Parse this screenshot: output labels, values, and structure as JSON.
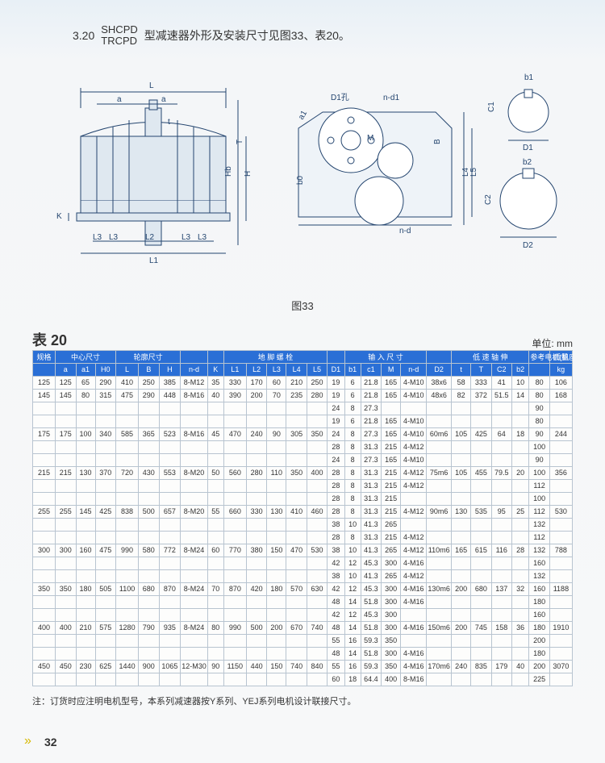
{
  "header": {
    "section_number": "3.20",
    "model_top": "SHCPD",
    "model_bottom": "TRCPD",
    "desc": "型减速器外形及安装尺寸见图33、表20。"
  },
  "figure_caption": "图33",
  "table_title": "表 20",
  "unit_label": "单位: mm",
  "diagram_labels": {
    "L": "L",
    "a": "a",
    "t": "t",
    "K": "K",
    "L3a": "L3",
    "L3b": "L3",
    "L2": "L2",
    "L3c": "L3",
    "L3d": "L3",
    "L1": "L1",
    "Hb": "Hb",
    "H": "H",
    "T": "T",
    "D1hole": "D1孔",
    "nd1": "n-d1",
    "a1": "a1",
    "M": "M",
    "B": "B",
    "L4": "L4",
    "L5": "L5",
    "b0": "b0",
    "nd": "n-d",
    "b1": "b1",
    "C1": "C1",
    "D1": "D1",
    "b2": "b2",
    "C2": "C2",
    "D2": "D2"
  },
  "columns": {
    "groups": [
      {
        "label": "规格",
        "span": 1
      },
      {
        "label": "中心尺寸",
        "span": 3
      },
      {
        "label": "轮廓尺寸",
        "span": 3
      },
      {
        "label": "",
        "span": 1
      },
      {
        "label": "",
        "span": 1
      },
      {
        "label": "地 脚 螺 栓",
        "span": 5
      },
      {
        "label": "",
        "span": 1
      },
      {
        "label": "输 入 尺 寸",
        "span": 4
      },
      {
        "label": "",
        "span": 1
      },
      {
        "label": "低 速 轴 伸",
        "span": 4
      },
      {
        "label": "参考电机(机座号)",
        "span": 1
      },
      {
        "label": "质量",
        "span": 1
      }
    ],
    "heads": [
      "",
      "a",
      "a1",
      "H0",
      "L",
      "B",
      "H",
      "n-d",
      "K",
      "L1",
      "L2",
      "L3",
      "L4",
      "L5",
      "D1",
      "b1",
      "c1",
      "M",
      "n-d",
      "D2",
      "t",
      "T",
      "C2",
      "b2",
      "",
      "kg"
    ]
  },
  "rows": [
    [
      "125",
      "125",
      "65",
      "290",
      "410",
      "250",
      "385",
      "8-M12",
      "35",
      "330",
      "170",
      "60",
      "210",
      "250",
      "19",
      "6",
      "21.8",
      "165",
      "4-M10",
      "38x6",
      "58",
      "333",
      "41",
      "10",
      "80",
      "106"
    ],
    [
      "145",
      "145",
      "80",
      "315",
      "475",
      "290",
      "448",
      "8-M16",
      "40",
      "390",
      "200",
      "70",
      "235",
      "280",
      "19",
      "6",
      "21.8",
      "165",
      "4-M10",
      "48x6",
      "82",
      "372",
      "51.5",
      "14",
      "80",
      "168"
    ],
    [
      "",
      "",
      "",
      "",
      "",
      "",
      "",
      "",
      "",
      "",
      "",
      "",
      "",
      "",
      "24",
      "8",
      "27.3",
      "",
      "",
      "",
      "",
      "",
      "",
      "",
      "90",
      ""
    ],
    [
      "",
      "",
      "",
      "",
      "",
      "",
      "",
      "",
      "",
      "",
      "",
      "",
      "",
      "",
      "19",
      "6",
      "21.8",
      "165",
      "4-M10",
      "",
      "",
      "",
      "",
      "",
      "80",
      ""
    ],
    [
      "175",
      "175",
      "100",
      "340",
      "585",
      "365",
      "523",
      "8-M16",
      "45",
      "470",
      "240",
      "90",
      "305",
      "350",
      "24",
      "8",
      "27.3",
      "165",
      "4-M10",
      "60m6",
      "105",
      "425",
      "64",
      "18",
      "90",
      "244"
    ],
    [
      "",
      "",
      "",
      "",
      "",
      "",
      "",
      "",
      "",
      "",
      "",
      "",
      "",
      "",
      "28",
      "8",
      "31.3",
      "215",
      "4-M12",
      "",
      "",
      "",
      "",
      "",
      "100",
      ""
    ],
    [
      "",
      "",
      "",
      "",
      "",
      "",
      "",
      "",
      "",
      "",
      "",
      "",
      "",
      "",
      "24",
      "8",
      "27.3",
      "165",
      "4-M10",
      "",
      "",
      "",
      "",
      "",
      "90",
      ""
    ],
    [
      "215",
      "215",
      "130",
      "370",
      "720",
      "430",
      "553",
      "8-M20",
      "50",
      "560",
      "280",
      "110",
      "350",
      "400",
      "28",
      "8",
      "31.3",
      "215",
      "4-M12",
      "75m6",
      "105",
      "455",
      "79.5",
      "20",
      "100",
      "356"
    ],
    [
      "",
      "",
      "",
      "",
      "",
      "",
      "",
      "",
      "",
      "",
      "",
      "",
      "",
      "",
      "28",
      "8",
      "31.3",
      "215",
      "4-M12",
      "",
      "",
      "",
      "",
      "",
      "112",
      ""
    ],
    [
      "",
      "",
      "",
      "",
      "",
      "",
      "",
      "",
      "",
      "",
      "",
      "",
      "",
      "",
      "28",
      "8",
      "31.3",
      "215",
      "",
      "",
      "",
      "",
      "",
      "",
      "100",
      ""
    ],
    [
      "255",
      "255",
      "145",
      "425",
      "838",
      "500",
      "657",
      "8-M20",
      "55",
      "660",
      "330",
      "130",
      "410",
      "460",
      "28",
      "8",
      "31.3",
      "215",
      "4-M12",
      "90m6",
      "130",
      "535",
      "95",
      "25",
      "112",
      "530"
    ],
    [
      "",
      "",
      "",
      "",
      "",
      "",
      "",
      "",
      "",
      "",
      "",
      "",
      "",
      "",
      "38",
      "10",
      "41.3",
      "265",
      "",
      "",
      "",
      "",
      "",
      "",
      "132",
      ""
    ],
    [
      "",
      "",
      "",
      "",
      "",
      "",
      "",
      "",
      "",
      "",
      "",
      "",
      "",
      "",
      "28",
      "8",
      "31.3",
      "215",
      "4-M12",
      "",
      "",
      "",
      "",
      "",
      "112",
      ""
    ],
    [
      "300",
      "300",
      "160",
      "475",
      "990",
      "580",
      "772",
      "8-M24",
      "60",
      "770",
      "380",
      "150",
      "470",
      "530",
      "38",
      "10",
      "41.3",
      "265",
      "4-M12",
      "110m6",
      "165",
      "615",
      "116",
      "28",
      "132",
      "788"
    ],
    [
      "",
      "",
      "",
      "",
      "",
      "",
      "",
      "",
      "",
      "",
      "",
      "",
      "",
      "",
      "42",
      "12",
      "45.3",
      "300",
      "4-M16",
      "",
      "",
      "",
      "",
      "",
      "160",
      ""
    ],
    [
      "",
      "",
      "",
      "",
      "",
      "",
      "",
      "",
      "",
      "",
      "",
      "",
      "",
      "",
      "38",
      "10",
      "41.3",
      "265",
      "4-M12",
      "",
      "",
      "",
      "",
      "",
      "132",
      ""
    ],
    [
      "350",
      "350",
      "180",
      "505",
      "1100",
      "680",
      "870",
      "8-M24",
      "70",
      "870",
      "420",
      "180",
      "570",
      "630",
      "42",
      "12",
      "45.3",
      "300",
      "4-M16",
      "130m6",
      "200",
      "680",
      "137",
      "32",
      "160",
      "1188"
    ],
    [
      "",
      "",
      "",
      "",
      "",
      "",
      "",
      "",
      "",
      "",
      "",
      "",
      "",
      "",
      "48",
      "14",
      "51.8",
      "300",
      "4-M16",
      "",
      "",
      "",
      "",
      "",
      "180",
      ""
    ],
    [
      "",
      "",
      "",
      "",
      "",
      "",
      "",
      "",
      "",
      "",
      "",
      "",
      "",
      "",
      "42",
      "12",
      "45.3",
      "300",
      "",
      "",
      "",
      "",
      "",
      "",
      "160",
      ""
    ],
    [
      "400",
      "400",
      "210",
      "575",
      "1280",
      "790",
      "935",
      "8-M24",
      "80",
      "990",
      "500",
      "200",
      "670",
      "740",
      "48",
      "14",
      "51.8",
      "300",
      "4-M16",
      "150m6",
      "200",
      "745",
      "158",
      "36",
      "180",
      "1910"
    ],
    [
      "",
      "",
      "",
      "",
      "",
      "",
      "",
      "",
      "",
      "",
      "",
      "",
      "",
      "",
      "55",
      "16",
      "59.3",
      "350",
      "",
      "",
      "",
      "",
      "",
      "",
      "200",
      ""
    ],
    [
      "",
      "",
      "",
      "",
      "",
      "",
      "",
      "",
      "",
      "",
      "",
      "",
      "",
      "",
      "48",
      "14",
      "51.8",
      "300",
      "4-M16",
      "",
      "",
      "",
      "",
      "",
      "180",
      ""
    ],
    [
      "450",
      "450",
      "230",
      "625",
      "1440",
      "900",
      "1065",
      "12-M30",
      "90",
      "1150",
      "440",
      "150",
      "740",
      "840",
      "55",
      "16",
      "59.3",
      "350",
      "4-M16",
      "170m6",
      "240",
      "835",
      "179",
      "40",
      "200",
      "3070"
    ],
    [
      "",
      "",
      "",
      "",
      "",
      "",
      "",
      "",
      "",
      "",
      "",
      "",
      "",
      "",
      "60",
      "18",
      "64.4",
      "400",
      "8-M16",
      "",
      "",
      "",
      "",
      "",
      "225",
      ""
    ]
  ],
  "note": "注：订货时应注明电机型号，本系列减速器按Y系列、YEJ系列电机设计联接尺寸。",
  "page_number": "32",
  "colors": {
    "header_bg": "#2a6fd6",
    "border": "#b8c4d0"
  }
}
